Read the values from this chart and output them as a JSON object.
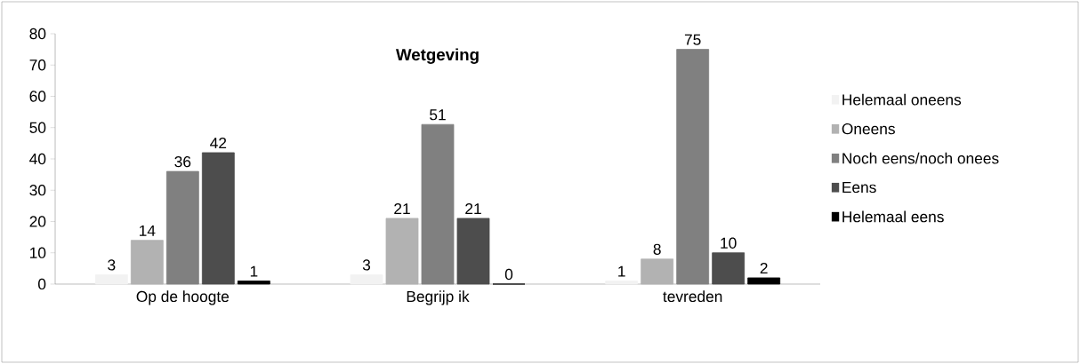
{
  "chart_data": {
    "type": "bar",
    "title": "Wetgeving",
    "categories": [
      "Op de hoogte",
      "Begrijp ik",
      "tevreden"
    ],
    "series": [
      {
        "name": "Helemaal oneens",
        "color": "#f2f2f2",
        "values": [
          3,
          3,
          1
        ]
      },
      {
        "name": "Oneens",
        "color": "#b2b2b2",
        "values": [
          14,
          21,
          8
        ]
      },
      {
        "name": "Noch eens/noch onees",
        "color": "#808080",
        "values": [
          36,
          51,
          75
        ]
      },
      {
        "name": "Eens",
        "color": "#4d4d4d",
        "values": [
          42,
          21,
          10
        ]
      },
      {
        "name": "Helemaal eens",
        "color": "#000000",
        "values": [
          1,
          0,
          2
        ]
      }
    ],
    "ylim": [
      0,
      80
    ],
    "yticks": [
      0,
      10,
      20,
      30,
      40,
      50,
      60,
      70,
      80
    ],
    "data_labels": true,
    "legend": "right",
    "grid": false
  }
}
